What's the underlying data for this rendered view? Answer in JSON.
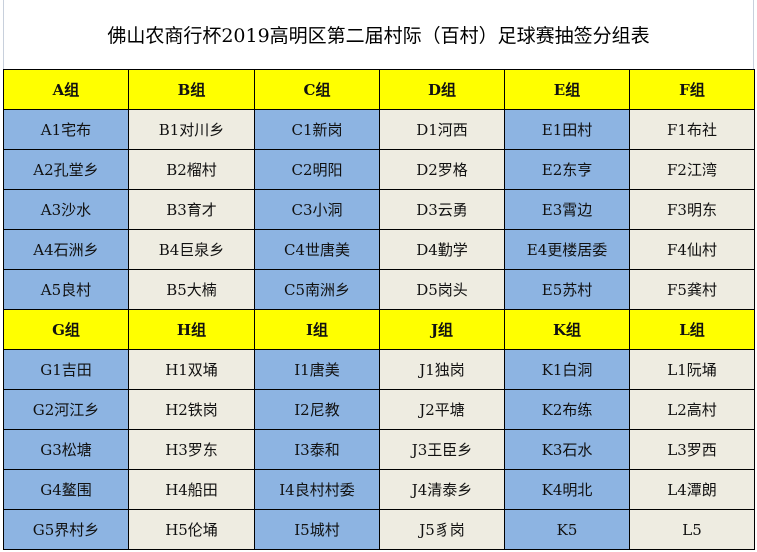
{
  "title": "佛山农商行杯2019高明区第二届村际（百村）足球赛抽签分组表",
  "colors": {
    "header": "#ffff00",
    "blue": "#8db4e2",
    "beige": "#eeece1"
  },
  "sections": [
    {
      "headers": [
        "A组",
        "B组",
        "C组",
        "D组",
        "E组",
        "F组"
      ],
      "rows": [
        [
          "A1宅布",
          "B1对川乡",
          "C1新岗",
          "D1河西",
          "E1田村",
          "F1布社"
        ],
        [
          "A2孔堂乡",
          "B2榴村",
          "C2明阳",
          "D2罗格",
          "E2东亨",
          "F2江湾"
        ],
        [
          "A3沙水",
          "B3育才",
          "C3小洞",
          "D3云勇",
          "E3霄边",
          "F3明东"
        ],
        [
          "A4石洲乡",
          "B4巨泉乡",
          "C4世唐美",
          "D4勤学",
          "E4更楼居委",
          "F4仙村"
        ],
        [
          "A5良村",
          "B5大楠",
          "C5南洲乡",
          "D5岗头",
          "E5苏村",
          "F5龚村"
        ]
      ]
    },
    {
      "headers": [
        "G组",
        "H组",
        "I组",
        "J组",
        "K组",
        "L组"
      ],
      "rows": [
        [
          "G1吉田",
          "H1双埇",
          "I1唐美",
          "J1独岗",
          "K1白洞",
          "L1阮埇"
        ],
        [
          "G2河江乡",
          "H2铁岗",
          "I2尼教",
          "J2平塘",
          "K2布练",
          "L2高村"
        ],
        [
          "G3松塘",
          "H3罗东",
          "I3泰和",
          "J3王臣乡",
          "K3石水",
          "L3罗西"
        ],
        [
          "G4鳌围",
          "H4船田",
          "I4良村村委",
          "J4清泰乡",
          "K4明北",
          "L4潭朗"
        ],
        [
          "G5界村乡",
          "H5伦埇",
          "I5城村",
          "J5豸岗",
          "K5",
          "L5"
        ]
      ]
    }
  ]
}
